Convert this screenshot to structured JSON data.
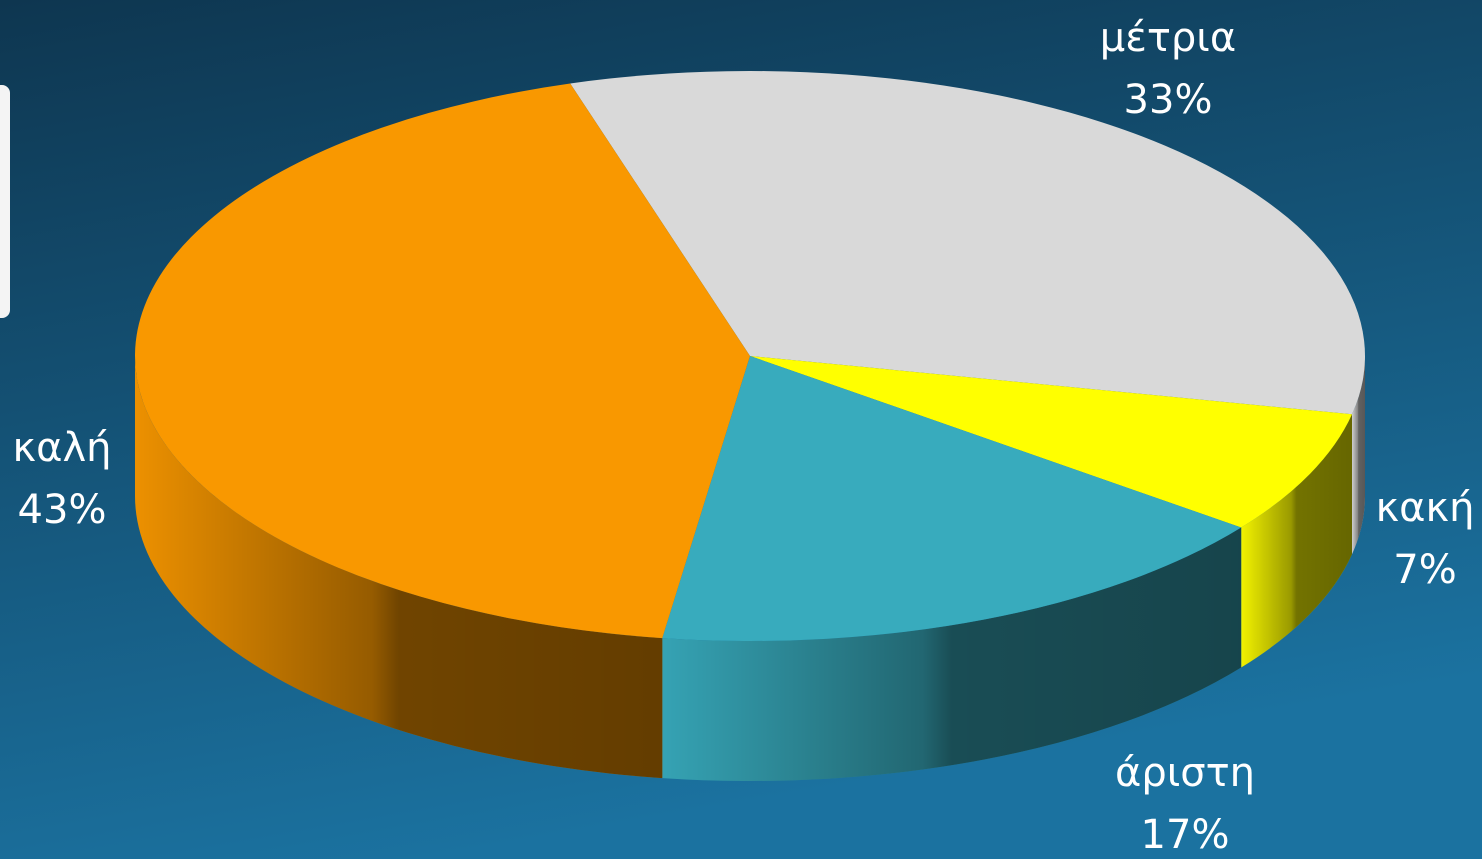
{
  "chart_data": {
    "type": "pie",
    "categories": [
      "μέτρια",
      "κακή",
      "άριστη",
      "καλή"
    ],
    "values": [
      33,
      7,
      17,
      43
    ],
    "value_labels": [
      "33%",
      "7%",
      "17%",
      "43%"
    ],
    "colors": [
      "#d9d9d9",
      "#ffff00",
      "#38abbd",
      "#f99800"
    ]
  }
}
